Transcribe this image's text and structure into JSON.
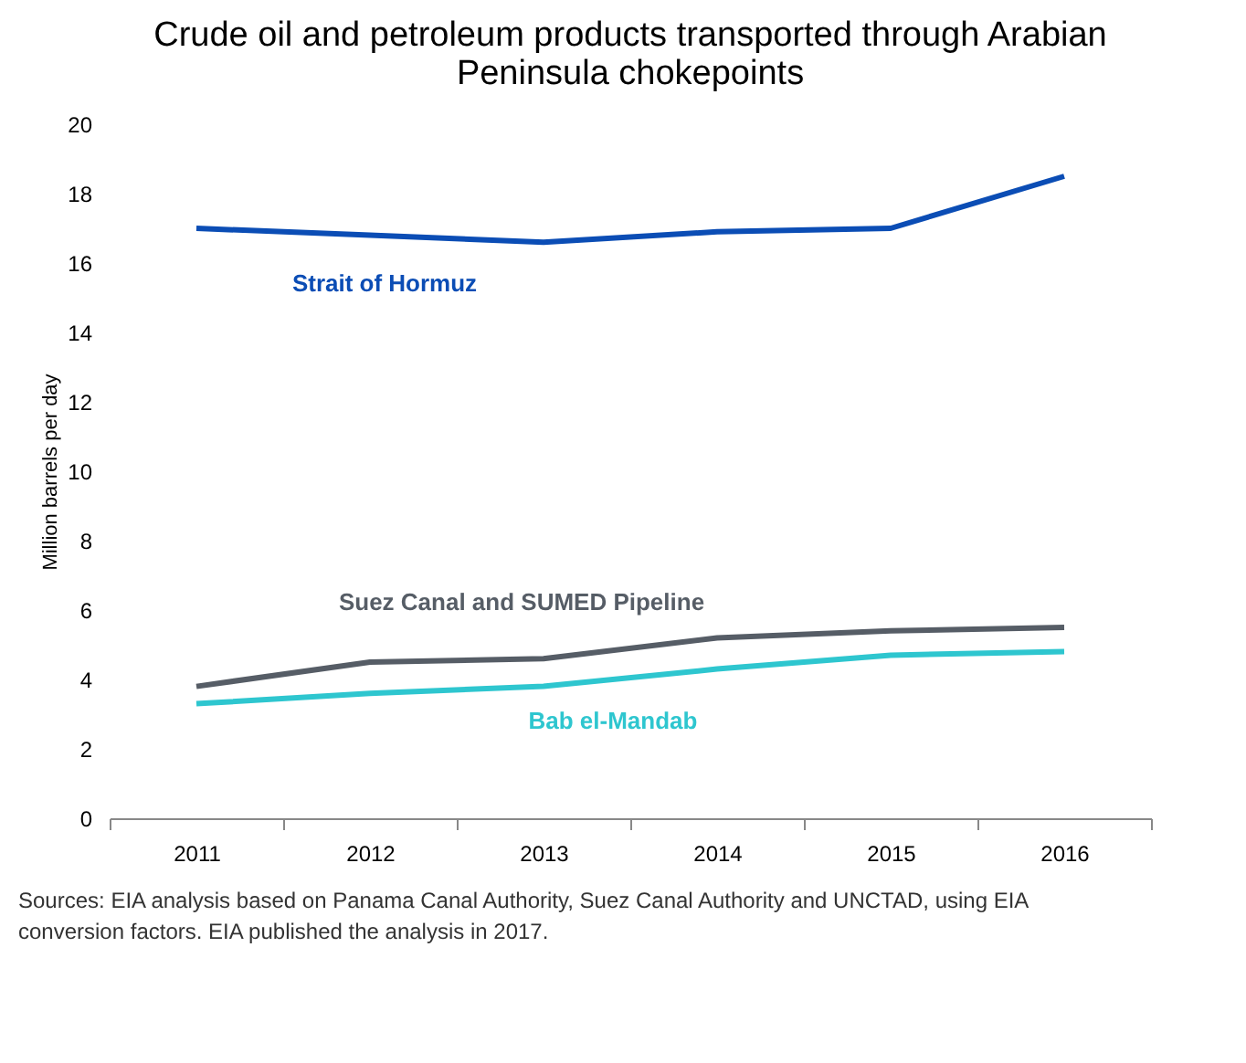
{
  "chart_data": {
    "type": "line",
    "title": "Crude oil and petroleum products transported through Arabian Peninsula chokepoints",
    "ylabel": "Million barrels per day",
    "categories": [
      "2011",
      "2012",
      "2013",
      "2014",
      "2015",
      "2016"
    ],
    "series": [
      {
        "name": "Strait of Hormuz",
        "color": "#0b4db5",
        "values": [
          17.0,
          16.8,
          16.6,
          16.9,
          17.0,
          18.5
        ]
      },
      {
        "name": "Suez Canal and SUMED Pipeline",
        "color": "#565d66",
        "values": [
          3.8,
          4.5,
          4.6,
          5.2,
          5.4,
          5.5
        ]
      },
      {
        "name": "Bab el-Mandab",
        "color": "#2ec6cf",
        "values": [
          3.3,
          3.6,
          3.8,
          4.3,
          4.7,
          4.8
        ]
      }
    ],
    "ylim": [
      0,
      20
    ],
    "yticks": [
      0,
      2,
      4,
      6,
      8,
      10,
      12,
      14,
      16,
      18,
      20
    ],
    "grid": false,
    "legend": false,
    "marker": "none",
    "line_style": "solid",
    "annotations": [
      "Sources: EIA analysis based on Panama Canal Authority, Suez Canal Authority and UNCTAD, using EIA conversion factors. EIA published the analysis in 2017."
    ]
  }
}
